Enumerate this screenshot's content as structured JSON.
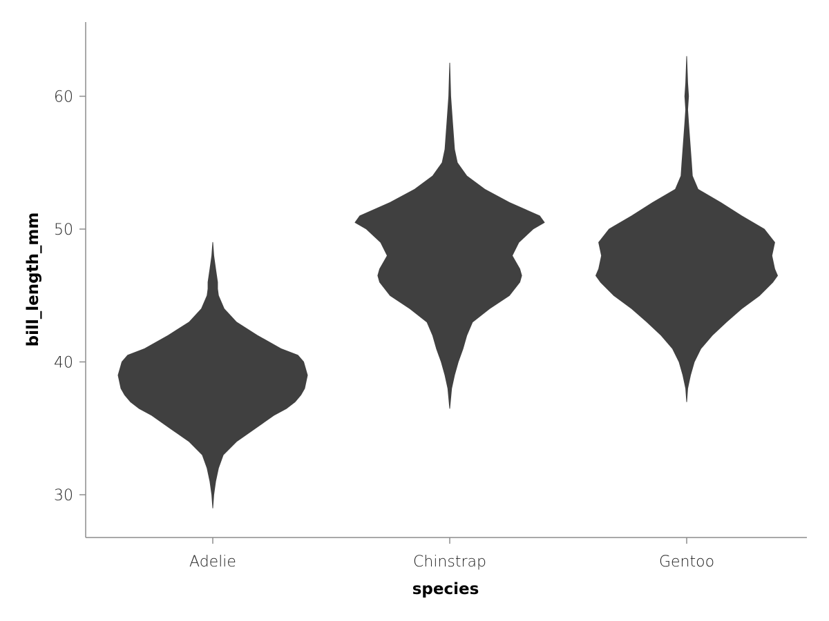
{
  "chart_data": {
    "type": "violin",
    "xlabel": "species",
    "ylabel": "bill_length_mm",
    "categories": [
      "Adelie",
      "Chinstrap",
      "Gentoo"
    ],
    "ylim": [
      26.8,
      65.5
    ],
    "yticks": [
      30,
      40,
      50,
      60
    ],
    "grid": false,
    "fill_color": "#404040",
    "axis_color": "#8c8c8c",
    "violins": [
      {
        "category": "Adelie",
        "profile": [
          [
            29.0,
            0.0
          ],
          [
            30.0,
            0.01
          ],
          [
            31.0,
            0.03
          ],
          [
            32.0,
            0.06
          ],
          [
            33.0,
            0.11
          ],
          [
            34.0,
            0.25
          ],
          [
            35.0,
            0.45
          ],
          [
            36.0,
            0.65
          ],
          [
            36.5,
            0.78
          ],
          [
            37.0,
            0.87
          ],
          [
            37.5,
            0.93
          ],
          [
            38.0,
            0.97
          ],
          [
            39.0,
            1.0
          ],
          [
            40.0,
            0.96
          ],
          [
            40.5,
            0.9
          ],
          [
            41.0,
            0.72
          ],
          [
            42.0,
            0.47
          ],
          [
            43.0,
            0.25
          ],
          [
            44.0,
            0.12
          ],
          [
            45.0,
            0.06
          ],
          [
            45.5,
            0.05
          ],
          [
            46.0,
            0.05
          ],
          [
            47.0,
            0.03
          ],
          [
            48.0,
            0.01
          ],
          [
            49.0,
            0.0
          ]
        ]
      },
      {
        "category": "Chinstrap",
        "profile": [
          [
            36.5,
            0.0
          ],
          [
            38.0,
            0.02
          ],
          [
            39.0,
            0.05
          ],
          [
            40.0,
            0.09
          ],
          [
            41.0,
            0.14
          ],
          [
            42.0,
            0.18
          ],
          [
            43.0,
            0.24
          ],
          [
            44.0,
            0.42
          ],
          [
            45.0,
            0.63
          ],
          [
            46.0,
            0.74
          ],
          [
            46.5,
            0.76
          ],
          [
            47.0,
            0.74
          ],
          [
            48.0,
            0.66
          ],
          [
            49.0,
            0.73
          ],
          [
            50.0,
            0.88
          ],
          [
            50.5,
            1.0
          ],
          [
            51.0,
            0.95
          ],
          [
            52.0,
            0.63
          ],
          [
            53.0,
            0.37
          ],
          [
            54.0,
            0.18
          ],
          [
            55.0,
            0.08
          ],
          [
            56.0,
            0.05
          ],
          [
            58.0,
            0.03
          ],
          [
            60.0,
            0.01
          ],
          [
            62.5,
            0.0
          ]
        ]
      },
      {
        "category": "Gentoo",
        "profile": [
          [
            37.0,
            0.0
          ],
          [
            38.0,
            0.01
          ],
          [
            39.0,
            0.04
          ],
          [
            40.0,
            0.08
          ],
          [
            41.0,
            0.15
          ],
          [
            42.0,
            0.27
          ],
          [
            43.0,
            0.42
          ],
          [
            44.0,
            0.58
          ],
          [
            45.0,
            0.77
          ],
          [
            46.0,
            0.91
          ],
          [
            46.5,
            0.96
          ],
          [
            47.0,
            0.93
          ],
          [
            48.0,
            0.9
          ],
          [
            49.0,
            0.93
          ],
          [
            50.0,
            0.82
          ],
          [
            51.0,
            0.58
          ],
          [
            52.0,
            0.36
          ],
          [
            53.0,
            0.12
          ],
          [
            54.0,
            0.06
          ],
          [
            55.0,
            0.05
          ],
          [
            57.0,
            0.03
          ],
          [
            58.0,
            0.02
          ],
          [
            59.0,
            0.01
          ],
          [
            60.0,
            0.02
          ],
          [
            61.0,
            0.01
          ],
          [
            63.0,
            0.0
          ]
        ]
      }
    ]
  }
}
